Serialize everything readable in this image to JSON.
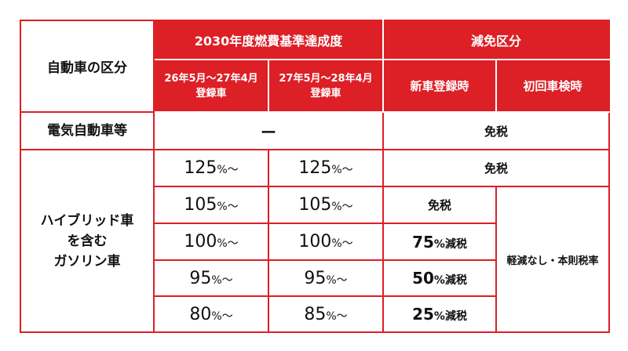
{
  "header": {
    "category": "自動車の区分",
    "fuel_standard": "2030年度燃費基準達成度",
    "reduction": "減免区分",
    "period1_line1": "26年5月～27年4月",
    "period1_line2": "登録車",
    "period2_line1": "27年5月～28年4月",
    "period2_line2": "登録車",
    "new_registration": "新車登録時",
    "first_inspection": "初回車検時"
  },
  "ev_row": {
    "label": "電気自動車等",
    "dash": "ー",
    "result": "免税"
  },
  "hybrid": {
    "label_line1": "ハイブリッド車",
    "label_line2": "を含む",
    "label_line3": "ガソリン車",
    "rows": [
      {
        "p1_num": "125",
        "p1_suffix": "%～",
        "p2_num": "125",
        "p2_suffix": "%～",
        "result": "免税"
      },
      {
        "p1_num": "105",
        "p1_suffix": "%～",
        "p2_num": "105",
        "p2_suffix": "%～",
        "result": "免税"
      },
      {
        "p1_num": "100",
        "p1_suffix": "%～",
        "p2_num": "100",
        "p2_suffix": "%～",
        "result_num": "75",
        "result_suffix": "%減税"
      },
      {
        "p1_num": "95",
        "p1_suffix": "%～",
        "p2_num": "95",
        "p2_suffix": "%～",
        "result_num": "50",
        "result_suffix": "%減税"
      },
      {
        "p1_num": "80",
        "p1_suffix": "%～",
        "p2_num": "85",
        "p2_suffix": "%～",
        "result_num": "25",
        "result_suffix": "%減税"
      }
    ],
    "no_reduction": "軽減なし・本則税率"
  },
  "colors": {
    "accent": "#dd1f26",
    "text": "#111111"
  }
}
